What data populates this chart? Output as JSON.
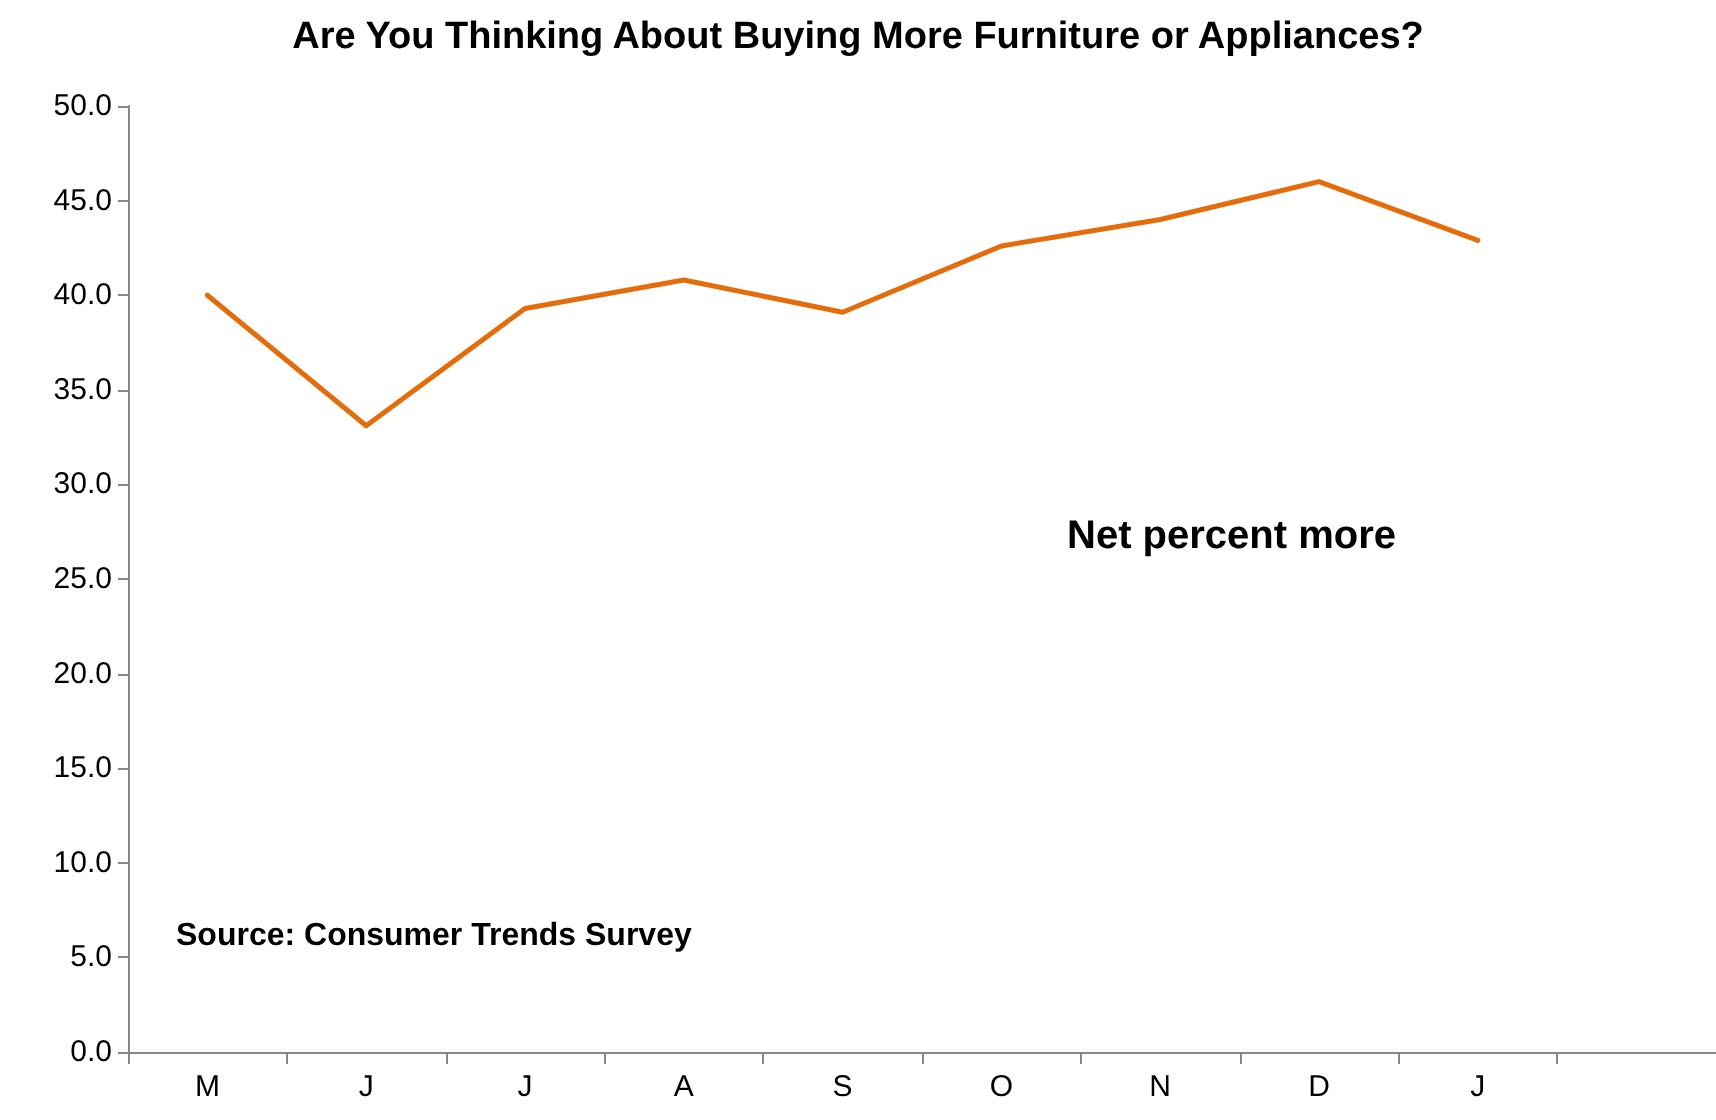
{
  "chart_data": {
    "type": "line",
    "title": "Are You Thinking About Buying More Furniture or Appliances?",
    "categories": [
      "M",
      "J",
      "J",
      "A",
      "S",
      "O",
      "N",
      "D",
      "J",
      null
    ],
    "series": [
      {
        "color": "#e46c0a",
        "values": [
          40.0,
          33.1,
          39.3,
          40.8,
          39.1,
          42.6,
          44.0,
          46.0,
          42.9,
          null
        ]
      }
    ],
    "ylim": [
      0,
      50
    ],
    "yticks": [
      {
        "value": 0,
        "label": "0.0"
      },
      {
        "value": 5,
        "label": "5.0"
      },
      {
        "value": 10,
        "label": "10.0"
      },
      {
        "value": 15,
        "label": "15.0"
      },
      {
        "value": 20,
        "label": "20.0"
      },
      {
        "value": 25,
        "label": "25.0"
      },
      {
        "value": 30,
        "label": "30.0"
      },
      {
        "value": 35,
        "label": "35.0"
      },
      {
        "value": 40,
        "label": "40.0"
      },
      {
        "value": 45,
        "label": "45.0"
      },
      {
        "value": 50,
        "label": "50.0"
      }
    ],
    "grid": false,
    "marker": "none",
    "line_style": "solid",
    "annotations": [
      "Net percent more",
      "Source: Consumer Trends Survey"
    ]
  }
}
